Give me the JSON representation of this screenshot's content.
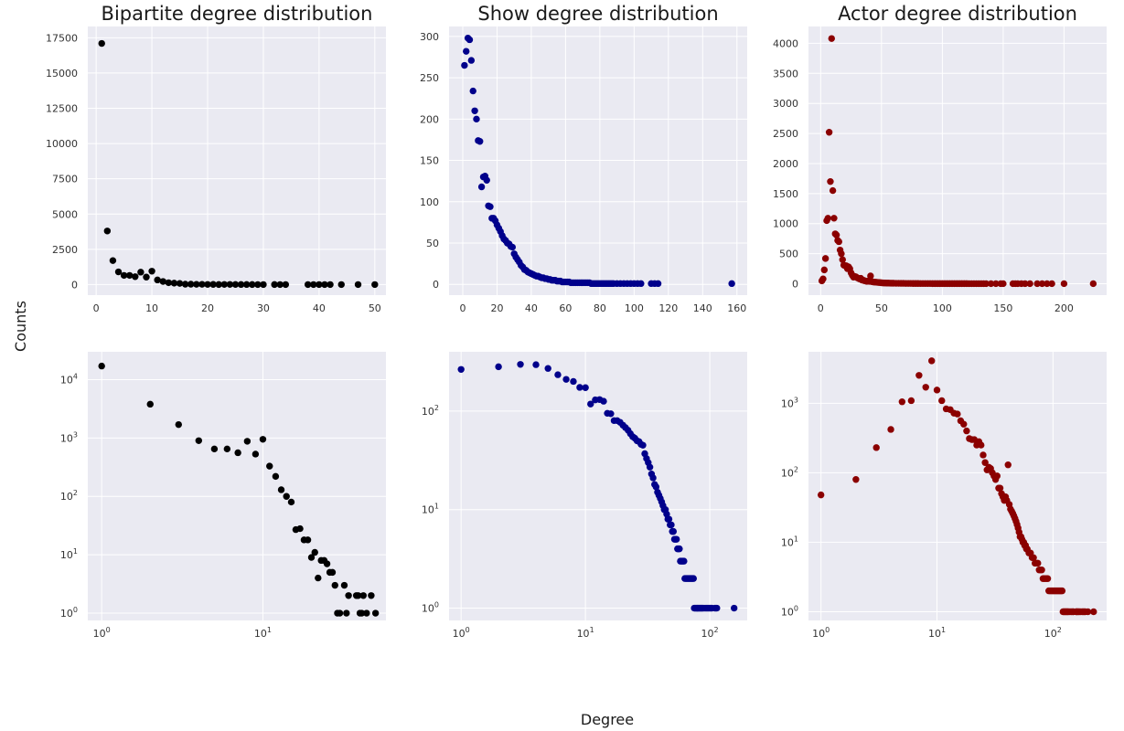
{
  "figure": {
    "ylabel": "Counts",
    "xlabel": "Degree",
    "background": "#eaeaf2",
    "grid_color": "#ffffff"
  },
  "chart_data": [
    {
      "type": "scatter",
      "title": "Bipartite degree distribution",
      "color": "#000000",
      "xscale": "linear",
      "yscale": "linear",
      "xlim": [
        -1.5,
        52
      ],
      "ylim": [
        -750,
        18300
      ],
      "xticks": [
        0,
        10,
        20,
        30,
        40,
        50
      ],
      "yticks": [
        0,
        2500,
        5000,
        7500,
        10000,
        12500,
        15000,
        17500
      ],
      "xtick_labels": [
        "0",
        "10",
        "20",
        "30",
        "40",
        "50"
      ],
      "ytick_labels": [
        "0",
        "2500",
        "5000",
        "7500",
        "10000",
        "12500",
        "15000",
        "17500"
      ],
      "x": [
        1,
        2,
        3,
        4,
        5,
        6,
        7,
        8,
        9,
        10,
        11,
        12,
        13,
        14,
        15,
        16,
        17,
        18,
        19,
        20,
        21,
        22,
        23,
        24,
        25,
        26,
        27,
        28,
        29,
        30,
        32,
        33,
        34,
        38,
        39,
        40,
        41,
        42,
        44,
        47,
        50
      ],
      "y": [
        17100,
        3800,
        1700,
        900,
        650,
        650,
        560,
        880,
        530,
        950,
        330,
        220,
        130,
        100,
        80,
        27,
        28,
        18,
        18,
        9,
        11,
        4,
        8,
        8,
        7,
        5,
        5,
        3,
        1,
        1,
        3,
        1,
        2,
        2,
        2,
        1,
        1,
        2,
        1,
        2,
        1
      ]
    },
    {
      "type": "scatter",
      "title": "Show degree distribution",
      "color": "#00008b",
      "xscale": "linear",
      "yscale": "linear",
      "xlim": [
        -8,
        166
      ],
      "ylim": [
        -13,
        312
      ],
      "xticks": [
        0,
        20,
        40,
        60,
        80,
        100,
        120,
        140,
        160
      ],
      "yticks": [
        0,
        50,
        100,
        150,
        200,
        250,
        300
      ],
      "xtick_labels": [
        "0",
        "20",
        "40",
        "60",
        "80",
        "100",
        "120",
        "140",
        "160"
      ],
      "ytick_labels": [
        "0",
        "50",
        "100",
        "150",
        "200",
        "250",
        "300"
      ],
      "x": [
        1,
        2,
        3,
        4,
        5,
        6,
        7,
        8,
        9,
        10,
        11,
        12,
        13,
        14,
        15,
        16,
        17,
        18,
        19,
        20,
        21,
        22,
        23,
        24,
        25,
        26,
        27,
        28,
        29,
        30,
        31,
        32,
        33,
        34,
        35,
        36,
        37,
        38,
        39,
        40,
        41,
        42,
        43,
        44,
        45,
        46,
        47,
        48,
        49,
        50,
        51,
        52,
        53,
        54,
        55,
        56,
        57,
        58,
        59,
        60,
        61,
        62,
        63,
        64,
        65,
        66,
        67,
        68,
        69,
        70,
        71,
        72,
        73,
        74,
        75,
        76,
        77,
        78,
        79,
        80,
        81,
        82,
        83,
        84,
        85,
        86,
        87,
        88,
        90,
        92,
        94,
        96,
        98,
        100,
        102,
        104,
        110,
        112,
        114,
        157
      ],
      "y": [
        265,
        282,
        298,
        296,
        271,
        234,
        210,
        200,
        174,
        173,
        118,
        130,
        131,
        126,
        95,
        94,
        80,
        80,
        77,
        72,
        68,
        64,
        59,
        55,
        53,
        50,
        49,
        46,
        45,
        37,
        33,
        30,
        27,
        23,
        21,
        18,
        17,
        15,
        14,
        13,
        12,
        11,
        10,
        10,
        9,
        8,
        8,
        7,
        7,
        6,
        6,
        5,
        5,
        5,
        4,
        4,
        4,
        3,
        3,
        3,
        3,
        3,
        2,
        2,
        2,
        2,
        2,
        2,
        2,
        2,
        2,
        2,
        2,
        2,
        1,
        1,
        1,
        1,
        1,
        1,
        1,
        1,
        1,
        1,
        1,
        1,
        1,
        1,
        1,
        1,
        1,
        1,
        1,
        1,
        1,
        1,
        1,
        1,
        1,
        1
      ]
    },
    {
      "type": "scatter",
      "title": "Actor degree distribution",
      "color": "#8b0000",
      "xscale": "linear",
      "yscale": "linear",
      "xlim": [
        -10,
        235
      ],
      "ylim": [
        -190,
        4280
      ],
      "xticks": [
        0,
        50,
        100,
        150,
        200
      ],
      "yticks": [
        0,
        500,
        1000,
        1500,
        2000,
        2500,
        3000,
        3500,
        4000
      ],
      "xtick_labels": [
        "0",
        "50",
        "100",
        "150",
        "200"
      ],
      "ytick_labels": [
        "0",
        "500",
        "1000",
        "1500",
        "2000",
        "2500",
        "3000",
        "3500",
        "4000"
      ],
      "x": [
        1,
        2,
        3,
        4,
        5,
        6,
        7,
        8,
        9,
        10,
        11,
        12,
        13,
        14,
        15,
        16,
        17,
        18,
        19,
        20,
        21,
        22,
        23,
        24,
        25,
        26,
        27,
        28,
        29,
        30,
        31,
        32,
        33,
        34,
        35,
        36,
        37,
        38,
        39,
        40,
        41,
        42,
        43,
        44,
        45,
        46,
        47,
        48,
        49,
        50,
        51,
        52,
        53,
        54,
        55,
        56,
        57,
        58,
        59,
        60,
        62,
        64,
        66,
        68,
        70,
        72,
        74,
        76,
        78,
        80,
        82,
        84,
        86,
        88,
        90,
        92,
        94,
        96,
        98,
        100,
        102,
        104,
        106,
        108,
        110,
        112,
        114,
        116,
        118,
        120,
        122,
        124,
        126,
        128,
        130,
        132,
        134,
        136,
        140,
        144,
        148,
        150,
        158,
        160,
        162,
        165,
        168,
        172,
        178,
        182,
        186,
        190,
        200,
        224
      ],
      "y": [
        48,
        80,
        230,
        420,
        1050,
        1090,
        2520,
        1700,
        4080,
        1550,
        1090,
        830,
        810,
        720,
        700,
        560,
        500,
        400,
        310,
        300,
        300,
        250,
        280,
        250,
        180,
        140,
        110,
        120,
        115,
        100,
        90,
        80,
        90,
        60,
        60,
        50,
        45,
        40,
        45,
        40,
        130,
        35,
        30,
        28,
        26,
        24,
        22,
        20,
        18,
        16,
        14,
        12,
        12,
        11,
        10,
        10,
        9,
        9,
        8,
        8,
        7,
        7,
        6,
        6,
        5,
        5,
        5,
        4,
        4,
        4,
        3,
        3,
        3,
        3,
        3,
        2,
        2,
        2,
        2,
        2,
        2,
        2,
        2,
        2,
        2,
        2,
        2,
        2,
        2,
        2,
        1,
        1,
        1,
        1,
        1,
        1,
        1,
        1,
        1,
        1,
        1,
        1,
        1,
        1,
        1,
        1,
        1,
        1,
        1,
        1,
        1,
        1,
        1,
        1
      ]
    },
    {
      "type": "scatter",
      "title": "",
      "color": "#000000",
      "xscale": "log",
      "yscale": "log",
      "xlim": [
        0.82,
        58
      ],
      "ylim": [
        0.75,
        30000
      ],
      "xticks": [
        1,
        10
      ],
      "yticks": [
        1,
        10,
        100,
        1000,
        10000
      ],
      "xtick_labels": [
        "10^0",
        "10^1"
      ],
      "ytick_labels": [
        "10^0",
        "10^1",
        "10^2",
        "10^3",
        "10^4"
      ],
      "x": [
        1,
        2,
        3,
        4,
        5,
        6,
        7,
        8,
        9,
        10,
        11,
        12,
        13,
        14,
        15,
        16,
        17,
        18,
        19,
        20,
        21,
        22,
        23,
        24,
        25,
        26,
        27,
        28,
        29,
        30,
        32,
        33,
        34,
        38,
        39,
        40,
        41,
        42,
        44,
        47,
        50
      ],
      "y": [
        17100,
        3800,
        1700,
        900,
        650,
        650,
        560,
        880,
        530,
        950,
        330,
        220,
        130,
        100,
        80,
        27,
        28,
        18,
        18,
        9,
        11,
        4,
        8,
        8,
        7,
        5,
        5,
        3,
        1,
        1,
        3,
        1,
        2,
        2,
        2,
        1,
        1,
        2,
        1,
        2,
        1
      ]
    },
    {
      "type": "scatter",
      "title": "",
      "color": "#00008b",
      "xscale": "log",
      "yscale": "log",
      "xlim": [
        0.8,
        200
      ],
      "ylim": [
        0.75,
        400
      ],
      "xticks": [
        1,
        10,
        100
      ],
      "yticks": [
        1,
        10,
        100
      ],
      "xtick_labels": [
        "10^0",
        "10^1",
        "10^2"
      ],
      "ytick_labels": [
        "10^0",
        "10^1",
        "10^2"
      ],
      "x": [
        1,
        2,
        3,
        4,
        5,
        6,
        7,
        8,
        9,
        10,
        11,
        12,
        13,
        14,
        15,
        16,
        17,
        18,
        19,
        20,
        21,
        22,
        23,
        24,
        25,
        26,
        27,
        28,
        29,
        30,
        31,
        32,
        33,
        34,
        35,
        36,
        37,
        38,
        39,
        40,
        41,
        42,
        43,
        44,
        45,
        46,
        47,
        48,
        49,
        50,
        51,
        52,
        53,
        54,
        55,
        56,
        57,
        58,
        59,
        60,
        61,
        62,
        63,
        64,
        65,
        66,
        67,
        68,
        69,
        70,
        71,
        72,
        73,
        74,
        75,
        76,
        77,
        78,
        79,
        80,
        81,
        82,
        83,
        84,
        85,
        86,
        87,
        88,
        90,
        92,
        94,
        96,
        98,
        100,
        102,
        104,
        110,
        112,
        114,
        157
      ],
      "y": [
        265,
        282,
        298,
        296,
        271,
        234,
        210,
        200,
        174,
        173,
        118,
        130,
        131,
        126,
        95,
        94,
        80,
        80,
        77,
        72,
        68,
        64,
        59,
        55,
        53,
        50,
        49,
        46,
        45,
        37,
        33,
        30,
        27,
        23,
        21,
        18,
        17,
        15,
        14,
        13,
        12,
        11,
        10,
        10,
        9,
        8,
        8,
        7,
        7,
        6,
        6,
        5,
        5,
        5,
        4,
        4,
        4,
        3,
        3,
        3,
        3,
        3,
        2,
        2,
        2,
        2,
        2,
        2,
        2,
        2,
        2,
        2,
        2,
        2,
        1,
        1,
        1,
        1,
        1,
        1,
        1,
        1,
        1,
        1,
        1,
        1,
        1,
        1,
        1,
        1,
        1,
        1,
        1,
        1,
        1,
        1,
        1,
        1,
        1,
        1
      ]
    },
    {
      "type": "scatter",
      "title": "",
      "color": "#8b0000",
      "xscale": "log",
      "yscale": "log",
      "xlim": [
        0.78,
        290
      ],
      "ylim": [
        0.75,
        5500
      ],
      "xticks": [
        1,
        10,
        100
      ],
      "yticks": [
        1,
        10,
        100,
        1000
      ],
      "xtick_labels": [
        "10^0",
        "10^1",
        "10^2"
      ],
      "ytick_labels": [
        "10^0",
        "10^1",
        "10^2",
        "10^3"
      ],
      "x": [
        1,
        2,
        3,
        4,
        5,
        6,
        7,
        8,
        9,
        10,
        11,
        12,
        13,
        14,
        15,
        16,
        17,
        18,
        19,
        20,
        21,
        22,
        23,
        24,
        25,
        26,
        27,
        28,
        29,
        30,
        31,
        32,
        33,
        34,
        35,
        36,
        37,
        38,
        39,
        40,
        41,
        42,
        43,
        44,
        45,
        46,
        47,
        48,
        49,
        50,
        51,
        52,
        53,
        54,
        55,
        56,
        57,
        58,
        59,
        60,
        62,
        64,
        66,
        68,
        70,
        72,
        74,
        76,
        78,
        80,
        82,
        84,
        86,
        88,
        90,
        92,
        94,
        96,
        98,
        100,
        102,
        104,
        106,
        108,
        110,
        112,
        114,
        116,
        118,
        120,
        122,
        124,
        126,
        128,
        130,
        132,
        134,
        136,
        140,
        144,
        148,
        150,
        158,
        160,
        162,
        165,
        168,
        172,
        178,
        182,
        186,
        190,
        200,
        224
      ],
      "y": [
        48,
        80,
        230,
        420,
        1050,
        1090,
        2520,
        1700,
        4080,
        1550,
        1090,
        830,
        810,
        720,
        700,
        560,
        500,
        400,
        310,
        300,
        300,
        250,
        280,
        250,
        180,
        140,
        110,
        120,
        115,
        100,
        90,
        80,
        90,
        60,
        60,
        50,
        45,
        40,
        45,
        40,
        130,
        35,
        30,
        28,
        26,
        24,
        22,
        20,
        18,
        16,
        14,
        12,
        12,
        11,
        10,
        10,
        9,
        9,
        8,
        8,
        7,
        7,
        6,
        6,
        5,
        5,
        5,
        4,
        4,
        4,
        3,
        3,
        3,
        3,
        3,
        2,
        2,
        2,
        2,
        2,
        2,
        2,
        2,
        2,
        2,
        2,
        2,
        2,
        2,
        2,
        1,
        1,
        1,
        1,
        1,
        1,
        1,
        1,
        1,
        1,
        1,
        1,
        1,
        1,
        1,
        1,
        1,
        1,
        1,
        1,
        1,
        1,
        1,
        1
      ]
    }
  ]
}
